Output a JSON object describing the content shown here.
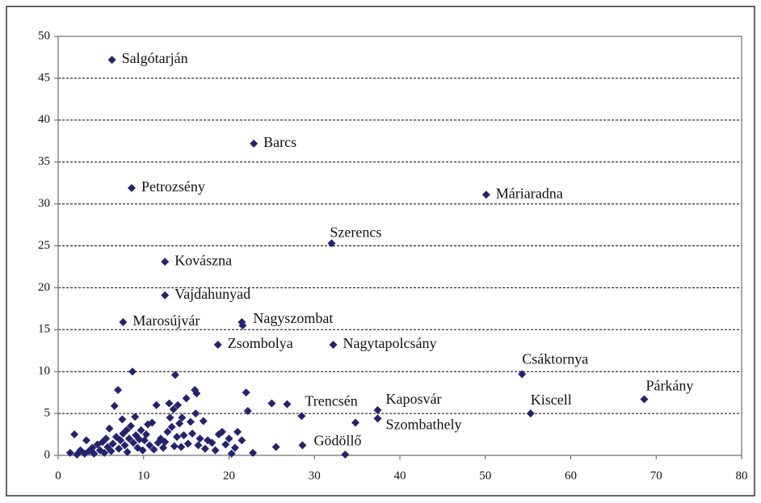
{
  "chart_data": {
    "type": "scatter",
    "color": "#23236e",
    "grid": true,
    "xlim": [
      0,
      80
    ],
    "ylim": [
      0,
      50
    ],
    "xticks": [
      0,
      10,
      20,
      30,
      40,
      50,
      60,
      70,
      80
    ],
    "yticks": [
      0,
      5,
      10,
      15,
      20,
      25,
      30,
      35,
      40,
      45,
      50
    ],
    "labels": [
      "Salgótarján",
      "Barcs",
      "Petrozsény",
      "Máriaradna",
      "Szerencs",
      "Kovászna",
      "Vajdahunyad",
      "Marosújvár",
      "Nagyszombat",
      null,
      "Zsombolya",
      "Nagytapolcsány",
      "Csáktornya",
      "Párkány",
      "Trencsén",
      "Kaposvár",
      "Szombathely",
      "Kiscell",
      "Gödöllő",
      null,
      null,
      null,
      null,
      null,
      null,
      null,
      null,
      null,
      null,
      null,
      null,
      null,
      null,
      null,
      null,
      null,
      null,
      null,
      null,
      null,
      null,
      null,
      null,
      null,
      null,
      null,
      null,
      null,
      null,
      null,
      null,
      null,
      null,
      null,
      null,
      null,
      null,
      null,
      null,
      null,
      null,
      null,
      null,
      null,
      null,
      null,
      null,
      null,
      null,
      null,
      null,
      null,
      null,
      null,
      null,
      null,
      null,
      null,
      null,
      null,
      null,
      null,
      null,
      null,
      null,
      null,
      null,
      null,
      null,
      null,
      null,
      null,
      null,
      null,
      null,
      null,
      null,
      null,
      null,
      null,
      null,
      null,
      null,
      null,
      null,
      null,
      null,
      null,
      null,
      null,
      null
    ],
    "x": [
      6.3,
      22.9,
      8.6,
      50.1,
      32.0,
      12.5,
      12.5,
      7.6,
      21.5,
      21.6,
      18.7,
      32.2,
      54.3,
      68.6,
      28.5,
      37.4,
      37.4,
      55.3,
      28.6,
      1.9,
      1.4,
      2.2,
      2.6,
      3.1,
      3.3,
      3.6,
      4.0,
      4.2,
      4.6,
      4.9,
      5.2,
      5.4,
      5.6,
      5.8,
      6.0,
      6.2,
      6.4,
      6.6,
      6.8,
      7.0,
      7.1,
      7.3,
      7.5,
      7.6,
      7.8,
      8.0,
      8.1,
      8.3,
      8.5,
      8.7,
      8.8,
      9.0,
      9.1,
      9.3,
      9.5,
      9.7,
      9.9,
      10.1,
      10.3,
      10.5,
      10.7,
      11.0,
      11.2,
      11.5,
      11.7,
      12.0,
      12.3,
      12.5,
      12.8,
      13.0,
      13.1,
      13.3,
      13.5,
      13.6,
      13.7,
      13.9,
      14.0,
      14.2,
      14.4,
      14.5,
      14.7,
      15.0,
      15.2,
      15.5,
      15.7,
      16.0,
      16.2,
      16.1,
      16.4,
      16.6,
      17.0,
      17.2,
      17.5,
      18.0,
      18.4,
      18.8,
      19.2,
      19.6,
      20.0,
      20.3,
      20.7,
      21.0,
      21.5,
      22.0,
      22.2,
      22.8,
      25.0,
      25.5,
      26.8,
      33.6,
      34.8
    ],
    "values": [
      47.2,
      37.2,
      31.9,
      31.1,
      25.3,
      23.1,
      19.1,
      15.9,
      15.9,
      15.5,
      13.2,
      13.2,
      9.7,
      6.7,
      4.7,
      5.4,
      4.4,
      5.0,
      1.2,
      2.5,
      0.3,
      0.1,
      0.6,
      0.2,
      1.8,
      0.5,
      0.9,
      0.2,
      1.3,
      0.6,
      1.6,
      0.3,
      2.0,
      1.0,
      3.2,
      0.5,
      1.4,
      5.9,
      2.2,
      7.8,
      0.8,
      1.8,
      4.3,
      2.6,
      1.2,
      3.0,
      0.4,
      2.0,
      3.5,
      10.0,
      1.5,
      4.6,
      2.4,
      0.9,
      1.9,
      3.0,
      0.6,
      1.8,
      2.5,
      3.7,
      1.2,
      3.9,
      0.7,
      6.0,
      1.5,
      2.0,
      0.9,
      1.6,
      2.8,
      6.2,
      4.5,
      3.4,
      5.5,
      1.1,
      9.6,
      2.2,
      6.0,
      3.8,
      1.0,
      4.5,
      2.4,
      6.8,
      1.4,
      4.0,
      2.6,
      7.8,
      7.4,
      5.0,
      1.2,
      2.0,
      4.1,
      0.8,
      1.8,
      1.5,
      0.6,
      2.5,
      2.8,
      1.3,
      2.0,
      0.2,
      0.9,
      2.8,
      1.8,
      7.5,
      5.3,
      0.3,
      6.2,
      1.0,
      6.1,
      0.1,
      3.9
    ]
  }
}
